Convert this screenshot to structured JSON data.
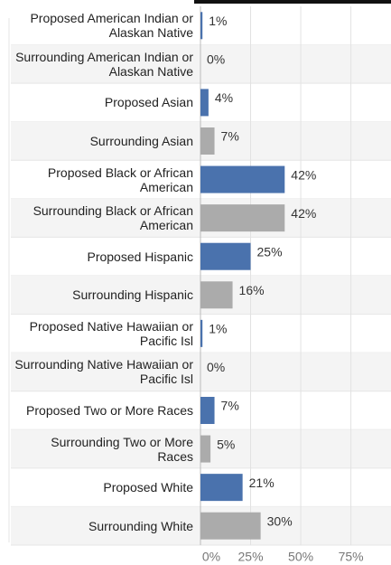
{
  "chart_data": {
    "type": "bar",
    "orientation": "horizontal",
    "categories": [
      "Proposed American Indian or Alaskan Native",
      "Surrounding American Indian or Alaskan Native",
      "Proposed Asian",
      "Surrounding Asian",
      "Proposed Black or African American",
      "Surrounding Black or African American",
      "Proposed Hispanic",
      "Surrounding Hispanic",
      "Proposed Native Hawaiian or Pacific Isl",
      "Surrounding Native Hawaiian or Pacific Isl",
      "Proposed Two or More Races",
      "Surrounding Two or More Races",
      "Proposed White",
      "Surrounding White"
    ],
    "values": [
      1,
      0,
      4,
      7,
      42,
      42,
      25,
      16,
      1,
      0,
      7,
      5,
      21,
      30
    ],
    "value_labels": [
      "1%",
      "0%",
      "4%",
      "7%",
      "42%",
      "42%",
      "25%",
      "16%",
      "1%",
      "0%",
      "7%",
      "5%",
      "21%",
      "30%"
    ],
    "colors": [
      "#4a72ad",
      "#ababab",
      "#4a72ad",
      "#ababab",
      "#4a72ad",
      "#ababab",
      "#4a72ad",
      "#ababab",
      "#4a72ad",
      "#ababab",
      "#4a72ad",
      "#ababab",
      "#4a72ad",
      "#ababab"
    ],
    "xlim": [
      0,
      95
    ],
    "xticks": [
      {
        "value": 0,
        "label": "0%"
      },
      {
        "value": 25,
        "label": "25%"
      },
      {
        "value": 50,
        "label": "50%"
      },
      {
        "value": 75,
        "label": "75%"
      }
    ],
    "grid": true
  }
}
